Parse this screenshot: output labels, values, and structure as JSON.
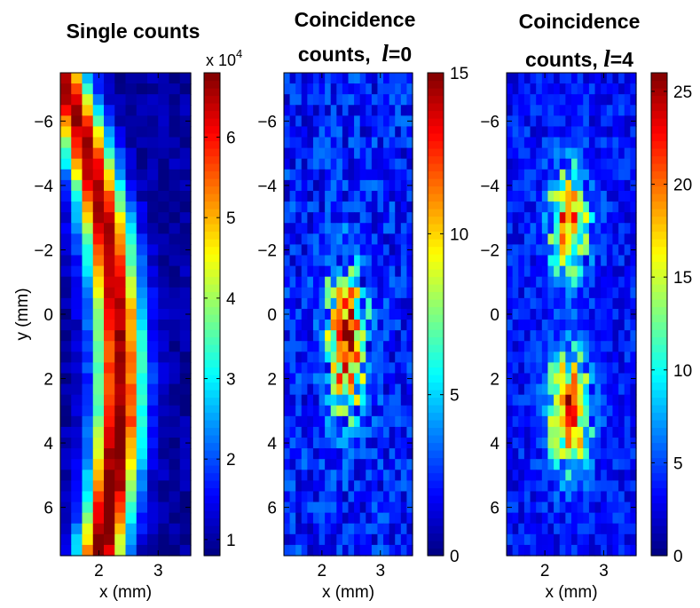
{
  "figure": {
    "background": "#ffffff"
  },
  "chart_data": [
    {
      "type": "heatmap",
      "title": "Single counts",
      "xlabel": "x (mm)",
      "ylabel": "y (mm)",
      "xlim": [
        1.35,
        3.55
      ],
      "ylim": [
        -7.5,
        7.5
      ],
      "y_reversed": true,
      "xticks": [
        "2",
        "3"
      ],
      "yticks": [
        "−6",
        "−4",
        "−2",
        "0",
        "2",
        "4",
        "6"
      ],
      "colorbar": {
        "min": 0.8,
        "max": 6.8,
        "ticks": [
          "1",
          "2",
          "3",
          "4",
          "5",
          "6"
        ],
        "multiplier": "x 10",
        "exponent": "4"
      },
      "colormap": "jet",
      "grid": {
        "cols": 12,
        "rows": 45
      },
      "description": "Bright curved stripe (~6.5e4 counts) bending from x=1.6 mm at y=-7 through x=2.35 mm at y=+2 and back to x=1.75 mm at y=+7.5; background ~1e4"
    },
    {
      "type": "heatmap",
      "title_line1": "Coincidence",
      "title_line2_prefix": "counts,",
      "title_symbol": "l",
      "title_suffix": "=0",
      "xlabel": "x (mm)",
      "xlim": [
        1.35,
        3.55
      ],
      "ylim": [
        -7.5,
        7.5
      ],
      "y_reversed": true,
      "xticks": [
        "2",
        "3"
      ],
      "yticks": [
        "−6",
        "−4",
        "−2",
        "0",
        "2",
        "4",
        "6"
      ],
      "colorbar": {
        "min": 0,
        "max": 15,
        "ticks": [
          "0",
          "5",
          "10",
          "15"
        ]
      },
      "colormap": "jet",
      "grid": {
        "cols": 22,
        "rows": 45
      },
      "description": "Single elongated lobe centered near x=2.4 mm, spanning y=-2.5 to +4, peak ~15 counts near y=0 to 3"
    },
    {
      "type": "heatmap",
      "title_line1": "Coincidence",
      "title_line2_prefix": "counts,",
      "title_symbol": "l",
      "title_suffix": "=4",
      "xlabel": "x (mm)",
      "xlim": [
        1.35,
        3.55
      ],
      "ylim": [
        -7.5,
        7.5
      ],
      "y_reversed": true,
      "xticks": [
        "2",
        "3"
      ],
      "yticks": [
        "−6",
        "−4",
        "−2",
        "0",
        "2",
        "4",
        "6"
      ],
      "colorbar": {
        "min": 0,
        "max": 26,
        "ticks": [
          "0",
          "5",
          "10",
          "15",
          "20",
          "25"
        ]
      },
      "colormap": "jet",
      "grid": {
        "cols": 22,
        "rows": 45
      },
      "description": "Two separated lobes near x=2.4 mm: upper lobe y=-5 to -1 (peak ~23), lower lobe y=1 to 5.5 (peak ~26), gap near y=0"
    }
  ]
}
